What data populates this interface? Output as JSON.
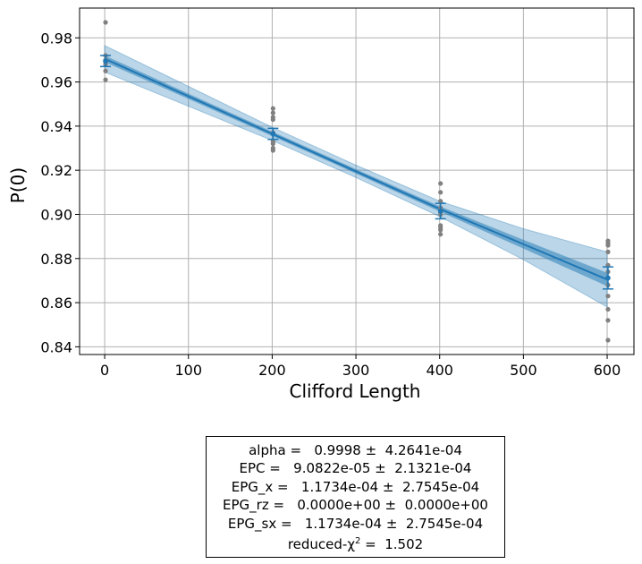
{
  "chart_data": {
    "type": "scatter",
    "title": "",
    "xlabel": "Clifford Length",
    "ylabel": "P(0)",
    "xlim": [
      -30,
      632
    ],
    "ylim": [
      0.8365,
      0.9935
    ],
    "xticks": [
      0,
      100,
      200,
      300,
      400,
      500,
      600
    ],
    "xtick_labels": [
      "0",
      "100",
      "200",
      "300",
      "400",
      "500",
      "600"
    ],
    "yticks": [
      0.84,
      0.86,
      0.88,
      0.9,
      0.92,
      0.94,
      0.96,
      0.98
    ],
    "ytick_labels": [
      "0.84",
      "0.86",
      "0.88",
      "0.90",
      "0.92",
      "0.94",
      "0.96",
      "0.98"
    ],
    "grid": true,
    "colors": {
      "raw_points": "#808080",
      "fit_line": "#1f77b4",
      "band_inner": "#1f77b4",
      "band_outer": "#1f77b4",
      "error_bars": "#1f77b4",
      "grid": "#b0b0b0"
    },
    "series": [
      {
        "kind": "raw_points",
        "points": [
          [
            1,
            0.987
          ],
          [
            1,
            0.972
          ],
          [
            1,
            0.97
          ],
          [
            1,
            0.968
          ],
          [
            1,
            0.965
          ],
          [
            1,
            0.961
          ],
          [
            1,
            0.969
          ],
          [
            201,
            0.948
          ],
          [
            201,
            0.946
          ],
          [
            201,
            0.944
          ],
          [
            201,
            0.943
          ],
          [
            201,
            0.937
          ],
          [
            201,
            0.933
          ],
          [
            201,
            0.932
          ],
          [
            201,
            0.93
          ],
          [
            201,
            0.929
          ],
          [
            401,
            0.914
          ],
          [
            401,
            0.91
          ],
          [
            401,
            0.906
          ],
          [
            401,
            0.903
          ],
          [
            401,
            0.901
          ],
          [
            401,
            0.9
          ],
          [
            401,
            0.895
          ],
          [
            401,
            0.894
          ],
          [
            401,
            0.893
          ],
          [
            401,
            0.891
          ],
          [
            601,
            0.888
          ],
          [
            601,
            0.887
          ],
          [
            601,
            0.886
          ],
          [
            601,
            0.883
          ],
          [
            601,
            0.877
          ],
          [
            601,
            0.874
          ],
          [
            601,
            0.868
          ],
          [
            601,
            0.863
          ],
          [
            601,
            0.857
          ],
          [
            601,
            0.852
          ],
          [
            601,
            0.843
          ]
        ]
      },
      {
        "kind": "mean_with_error",
        "x": [
          1,
          201,
          401,
          601
        ],
        "y": [
          0.9695,
          0.9365,
          0.9015,
          0.8712
        ],
        "yerr": [
          0.0025,
          0.0025,
          0.0035,
          0.005
        ]
      },
      {
        "kind": "fit",
        "x": [
          0,
          100,
          200,
          300,
          400,
          500,
          600
        ],
        "y": [
          0.9705,
          0.9535,
          0.9365,
          0.9195,
          0.9025,
          0.8865,
          0.8705
        ],
        "band_1sigma_halfwidth": [
          0.0015,
          0.0012,
          0.001,
          0.001,
          0.0012,
          0.002,
          0.003
        ],
        "band_3sigma_halfwidth": [
          0.006,
          0.0045,
          0.003,
          0.0028,
          0.0035,
          0.007,
          0.0125
        ]
      }
    ]
  },
  "fit_report": {
    "alpha_line": "alpha =   0.9998 ±  4.2641e-04",
    "epc_line": "EPC =   9.0822e-05 ±  2.1321e-04",
    "epg_x_line": "EPG_x =   1.1734e-04 ±  2.7545e-04",
    "epg_rz_line": "EPG_rz =   0.0000e+00 ±  0.0000e+00",
    "epg_sx_line": "EPG_sx =   1.1734e-04 ±  2.7545e-04",
    "chi2_prefix": "reduced-χ",
    "chi2_sup": "2",
    "chi2_suffix": " =  1.502"
  }
}
